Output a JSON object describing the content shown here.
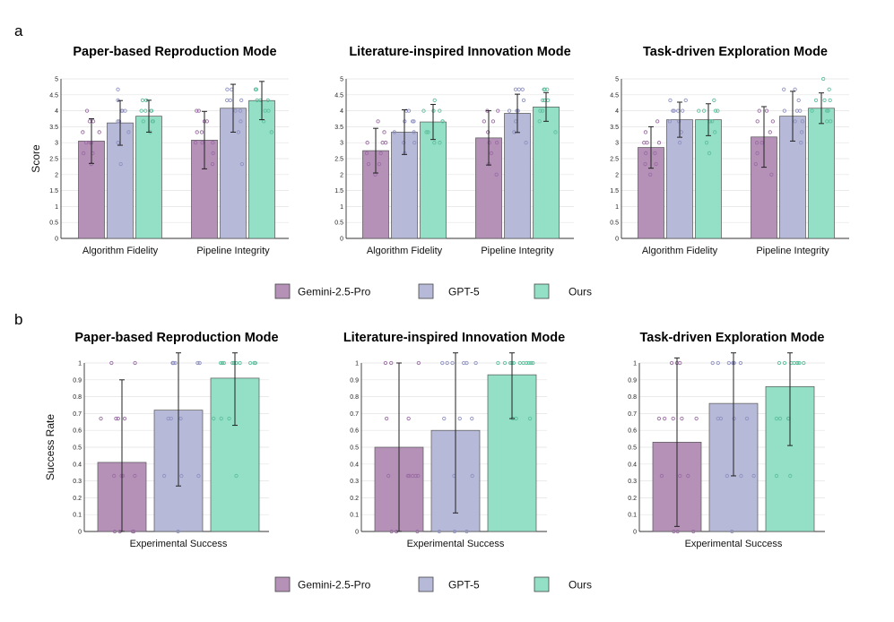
{
  "panel_labels": [
    "a",
    "b"
  ],
  "colors": {
    "Gemini-2.5-Pro": {
      "fill": "#b591b8",
      "dot": "#9b6ea3"
    },
    "GPT-5": {
      "fill": "#b7b9d8",
      "dot": "#8f92c2"
    },
    "Ours": {
      "fill": "#93e0c6",
      "dot": "#5fbf9c"
    }
  },
  "legend": [
    "Gemini-2.5-Pro",
    "GPT-5",
    "Ours"
  ],
  "chart_data": [
    {
      "id": "a1",
      "type": "bar",
      "title": "Paper-based Reproduction Mode",
      "ylabel": "Score",
      "ylim": [
        0,
        5
      ],
      "yticks": [
        "0",
        "0.5",
        "1",
        "1.5",
        "2",
        "2.5",
        "3",
        "3.5",
        "4",
        "4.5",
        "5"
      ],
      "categories": [
        "Algorithm Fidelity",
        "Pipeline Integrity"
      ],
      "series": [
        {
          "name": "Gemini-2.5-Pro",
          "values": [
            3.05,
            3.08
          ],
          "err": [
            0.7,
            0.9
          ]
        },
        {
          "name": "GPT-5",
          "values": [
            3.62,
            4.08
          ],
          "err": [
            0.7,
            0.75
          ]
        },
        {
          "name": "Ours",
          "values": [
            3.83,
            4.32
          ],
          "err": [
            0.5,
            0.6
          ]
        }
      ]
    },
    {
      "id": "a2",
      "type": "bar",
      "title": "Literature-inspired Innovation Mode",
      "ylabel": "",
      "ylim": [
        0,
        5
      ],
      "yticks": [
        "0",
        "0.5",
        "1",
        "1.5",
        "2",
        "2.5",
        "3",
        "3.5",
        "4",
        "4.5",
        "5"
      ],
      "categories": [
        "Algorithm Fidelity",
        "Pipeline Integrity"
      ],
      "series": [
        {
          "name": "Gemini-2.5-Pro",
          "values": [
            2.75,
            3.15
          ],
          "err": [
            0.7,
            0.85
          ]
        },
        {
          "name": "GPT-5",
          "values": [
            3.33,
            3.92
          ],
          "err": [
            0.7,
            0.6
          ]
        },
        {
          "name": "Ours",
          "values": [
            3.65,
            4.12
          ],
          "err": [
            0.55,
            0.45
          ]
        }
      ]
    },
    {
      "id": "a3",
      "type": "bar",
      "title": "Task-driven Exploration Mode",
      "ylabel": "",
      "ylim": [
        0,
        5
      ],
      "yticks": [
        "0",
        "0.5",
        "1",
        "1.5",
        "2",
        "2.5",
        "3",
        "3.5",
        "4",
        "4.5",
        "5"
      ],
      "categories": [
        "Algorithm Fidelity",
        "Pipeline Integrity"
      ],
      "series": [
        {
          "name": "Gemini-2.5-Pro",
          "values": [
            2.85,
            3.18
          ],
          "err": [
            0.65,
            0.95
          ]
        },
        {
          "name": "GPT-5",
          "values": [
            3.72,
            3.83
          ],
          "err": [
            0.55,
            0.78
          ]
        },
        {
          "name": "Ours",
          "values": [
            3.72,
            4.08
          ],
          "err": [
            0.5,
            0.48
          ]
        }
      ]
    },
    {
      "id": "b1",
      "type": "bar",
      "title": "Paper-based Reproduction Mode",
      "ylabel": "Success Rate",
      "ylim": [
        0,
        1
      ],
      "yticks": [
        "0",
        "0.1",
        "0.2",
        "0.3",
        "0.4",
        "0.5",
        "0.6",
        "0.7",
        "0.8",
        "0.9",
        "1"
      ],
      "categories": [
        "Experimental Success"
      ],
      "series": [
        {
          "name": "Gemini-2.5-Pro",
          "values": [
            0.41
          ],
          "err": [
            0.49
          ]
        },
        {
          "name": "GPT-5",
          "values": [
            0.72
          ],
          "err": [
            0.45
          ]
        },
        {
          "name": "Ours",
          "values": [
            0.91
          ],
          "err": [
            0.28
          ]
        }
      ]
    },
    {
      "id": "b2",
      "type": "bar",
      "title": "Literature-inspired Innovation Mode",
      "ylabel": "",
      "ylim": [
        0,
        1
      ],
      "yticks": [
        "0",
        "0.1",
        "0.2",
        "0.3",
        "0.4",
        "0.5",
        "0.6",
        "0.7",
        "0.8",
        "0.9",
        "1"
      ],
      "categories": [
        "Experimental Success"
      ],
      "series": [
        {
          "name": "Gemini-2.5-Pro",
          "values": [
            0.5
          ],
          "err": [
            0.5
          ]
        },
        {
          "name": "GPT-5",
          "values": [
            0.6
          ],
          "err": [
            0.49
          ]
        },
        {
          "name": "Ours",
          "values": [
            0.93
          ],
          "err": [
            0.26
          ]
        }
      ]
    },
    {
      "id": "b3",
      "type": "bar",
      "title": "Task-driven Exploration Mode",
      "ylabel": "",
      "ylim": [
        0,
        1
      ],
      "yticks": [
        "0",
        "0.1",
        "0.2",
        "0.3",
        "0.4",
        "0.5",
        "0.6",
        "0.7",
        "0.8",
        "0.9",
        "1"
      ],
      "categories": [
        "Experimental Success"
      ],
      "series": [
        {
          "name": "Gemini-2.5-Pro",
          "values": [
            0.53
          ],
          "err": [
            0.5
          ]
        },
        {
          "name": "GPT-5",
          "values": [
            0.76
          ],
          "err": [
            0.43
          ]
        },
        {
          "name": "Ours",
          "values": [
            0.86
          ],
          "err": [
            0.35
          ]
        }
      ]
    }
  ],
  "scatter_points": {
    "a1": [
      [
        [
          2.33,
          2.67,
          2.67,
          3,
          3,
          3,
          3.33,
          3.33,
          3.67,
          3.67,
          4
        ],
        [
          2.33,
          2.67,
          3,
          3,
          3,
          3.33,
          3.33,
          3.67,
          3.67,
          4,
          4
        ]
      ],
      [
        [
          2.33,
          3,
          3.33,
          3.67,
          3.67,
          4,
          4,
          4,
          4.33,
          4.67
        ],
        [
          2.33,
          3.33,
          3.67,
          4,
          4,
          4.33,
          4.33,
          4.33,
          4.67,
          4.67
        ]
      ],
      [
        [
          3.33,
          3.67,
          3.67,
          3.67,
          4,
          4,
          4,
          4,
          4.33,
          4.33
        ],
        [
          3.33,
          3.67,
          4,
          4,
          4.33,
          4.33,
          4.33,
          4.67,
          4.67,
          4.67
        ]
      ]
    ],
    "a2": [
      [
        [
          2,
          2.33,
          2.33,
          2.67,
          2.67,
          3,
          3,
          3,
          3.33,
          3.67
        ],
        [
          2,
          2.33,
          2.67,
          3,
          3,
          3.33,
          3.67,
          3.67,
          4,
          4
        ]
      ],
      [
        [
          2.67,
          3,
          3,
          3.33,
          3.33,
          3.67,
          3.67,
          3.67,
          4,
          4
        ],
        [
          3,
          3.33,
          3.67,
          4,
          4,
          4,
          4.33,
          4.67,
          4.67,
          4.67
        ]
      ],
      [
        [
          3,
          3,
          3.33,
          3.33,
          3.67,
          3.67,
          4,
          4,
          4,
          4.33
        ],
        [
          3.33,
          3.67,
          4,
          4,
          4.33,
          4.33,
          4.33,
          4.67,
          4.67,
          4.67
        ]
      ]
    ],
    "a3": [
      [
        [
          2,
          2.33,
          2.33,
          2.67,
          2.67,
          3,
          3,
          3,
          3.33,
          3.67
        ],
        [
          2,
          2.33,
          2.67,
          3,
          3,
          3.33,
          3.67,
          3.67,
          4,
          4
        ]
      ],
      [
        [
          3,
          3.33,
          3.67,
          3.67,
          4,
          4,
          4,
          4,
          4.33,
          4.33
        ],
        [
          3,
          3.33,
          3.67,
          3.67,
          4,
          4,
          4,
          4.33,
          4.67,
          4.67
        ]
      ],
      [
        [
          2.67,
          3,
          3.33,
          3.67,
          3.67,
          4,
          4,
          4,
          4,
          4.33
        ],
        [
          3.67,
          3.67,
          4,
          4,
          4,
          4.33,
          4.33,
          4.33,
          4.67,
          5
        ]
      ]
    ],
    "b1": [
      [
        [
          0,
          0,
          0,
          0,
          0.33,
          0.33,
          0.33,
          0.33,
          0.67,
          0.67,
          0.67,
          0.67,
          1,
          1
        ]
      ],
      [
        [
          0,
          0.33,
          0.33,
          0.33,
          0.67,
          0.67,
          0.67,
          1,
          1,
          1,
          1,
          1,
          1,
          1
        ]
      ],
      [
        [
          0.33,
          0.67,
          0.67,
          0.67,
          1,
          1,
          1,
          1,
          1,
          1,
          1,
          1,
          1,
          1
        ]
      ]
    ],
    "b2": [
      [
        [
          0,
          0,
          0,
          0.33,
          0.33,
          0.33,
          0.33,
          0.33,
          0.33,
          0.67,
          0.67,
          1,
          1,
          1
        ]
      ],
      [
        [
          0,
          0,
          0,
          0.33,
          0.33,
          0.67,
          0.67,
          0.67,
          1,
          1,
          1,
          1,
          1,
          1
        ]
      ],
      [
        [
          0.67,
          0.67,
          0.67,
          1,
          1,
          1,
          1,
          1,
          1,
          1,
          1,
          1,
          1,
          1
        ]
      ]
    ],
    "b3": [
      [
        [
          0,
          0,
          0,
          0.33,
          0.33,
          0.33,
          0.67,
          0.67,
          0.67,
          0.67,
          0.67,
          1,
          1,
          1
        ]
      ],
      [
        [
          0,
          0.33,
          0.33,
          0.33,
          0.67,
          0.67,
          0.67,
          0.67,
          1,
          1,
          1,
          1,
          1,
          1
        ]
      ],
      [
        [
          0.33,
          0.33,
          0.67,
          0.67,
          0.67,
          0.67,
          1,
          1,
          1,
          1,
          1,
          1,
          1,
          1
        ]
      ]
    ]
  }
}
